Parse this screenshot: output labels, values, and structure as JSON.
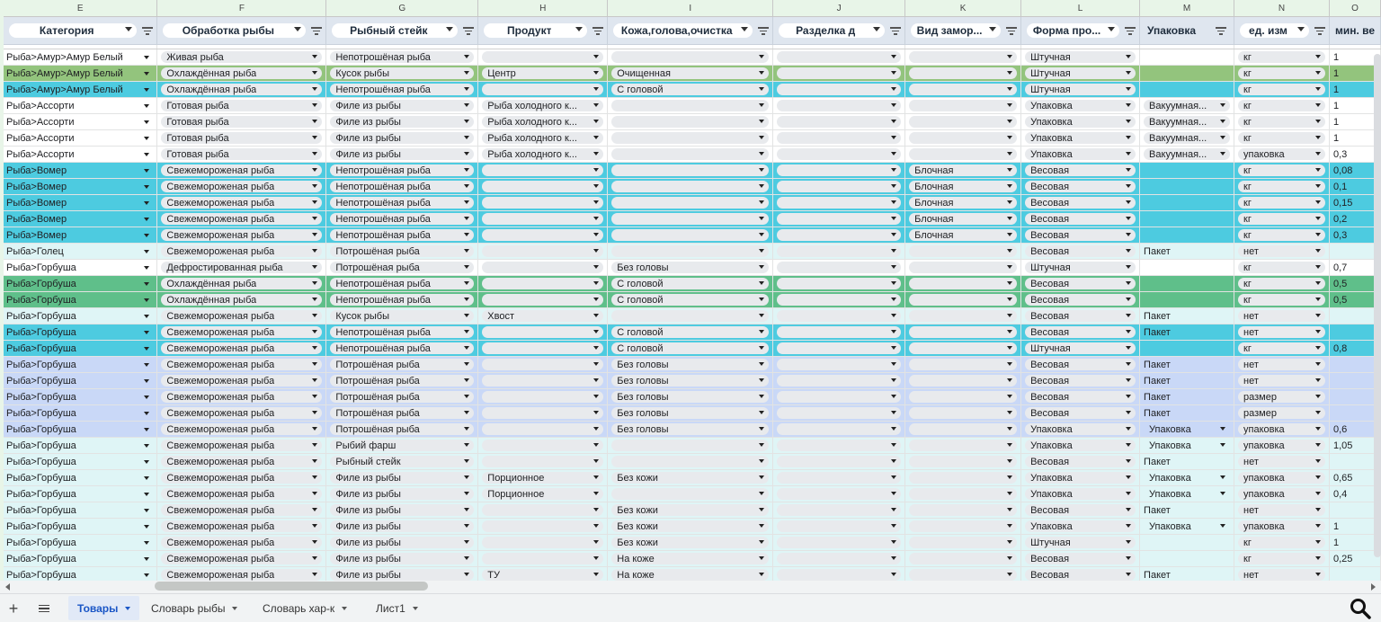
{
  "columns": [
    {
      "letter": "E",
      "header": "Категория",
      "type": "chipheader",
      "filter": true,
      "cell": "nochip"
    },
    {
      "letter": "F",
      "header": "Обработка рыбы",
      "type": "chipheader",
      "filter": true,
      "cell": "chip"
    },
    {
      "letter": "G",
      "header": "Рыбный стейк",
      "type": "chipheader",
      "filter": true,
      "cell": "chip"
    },
    {
      "letter": "H",
      "header": "Продукт",
      "type": "chipheader",
      "filter": true,
      "cell": "chip"
    },
    {
      "letter": "I",
      "header": "Кожа,голова,очистка",
      "type": "chipheader",
      "filter": true,
      "cell": "chip"
    },
    {
      "letter": "J",
      "header": "Разделка д",
      "type": "chipheader",
      "filter": true,
      "cell": "chip"
    },
    {
      "letter": "K",
      "header": "Вид замор...",
      "type": "chipheader",
      "filter": true,
      "cell": "chip"
    },
    {
      "letter": "L",
      "header": "Форма про...",
      "type": "chipheader",
      "filter": true,
      "cell": "chip"
    },
    {
      "letter": "M",
      "header": "Упаковка",
      "type": "plainheader",
      "filter": true,
      "cell": "special"
    },
    {
      "letter": "N",
      "header": "ед. изм",
      "type": "chipheader",
      "filter": true,
      "cell": "chip"
    },
    {
      "letter": "O",
      "header": "мин. ве",
      "type": "plainheader",
      "filter": false,
      "cell": "plain"
    }
  ],
  "colors": {
    "white": "#ffffff",
    "light": "#dff5f6",
    "cyan": "#4dcbe0",
    "green": "#93c47d",
    "teal": "#5fbf8a",
    "lav": "#c9d8f7"
  },
  "rows": [
    {
      "bg": "white",
      "fill": "white",
      "cells": [
        "Рыба>Амур>Амур Белый",
        "Живая рыба",
        "Непотрошёная рыба",
        "",
        "",
        "",
        "",
        "Штучная",
        "",
        "кг",
        "1"
      ]
    },
    {
      "bg": "green",
      "fill": "green",
      "cells": [
        "Рыба>Амур>Амур Белый",
        "Охлаждённая рыба",
        "Кусок рыбы",
        "Центр",
        "Очищенная",
        "",
        "",
        "Штучная",
        "",
        "кг",
        "1"
      ]
    },
    {
      "bg": "cyan",
      "fill": "cyan",
      "cells": [
        "Рыба>Амур>Амур Белый",
        "Охлаждённая рыба",
        "Непотрошёная рыба",
        "",
        "С головой",
        "",
        "",
        "Штучная",
        "",
        "кг",
        "1"
      ]
    },
    {
      "bg": "white",
      "fill": "white",
      "cells": [
        "Рыба>Ассорти",
        "Готовая рыба",
        "Филе из рыбы",
        "Рыба холодного к...",
        "",
        "",
        "",
        "Упаковка",
        "Вакуумная...",
        "кг",
        "1"
      ]
    },
    {
      "bg": "white",
      "fill": "white",
      "cells": [
        "Рыба>Ассорти",
        "Готовая рыба",
        "Филе из рыбы",
        "Рыба холодного к...",
        "",
        "",
        "",
        "Упаковка",
        "Вакуумная...",
        "кг",
        "1"
      ]
    },
    {
      "bg": "white",
      "fill": "white",
      "cells": [
        "Рыба>Ассорти",
        "Готовая рыба",
        "Филе из рыбы",
        "Рыба холодного к...",
        "",
        "",
        "",
        "Упаковка",
        "Вакуумная...",
        "кг",
        "1"
      ]
    },
    {
      "bg": "white",
      "fill": "white",
      "cells": [
        "Рыба>Ассорти",
        "Готовая рыба",
        "Филе из рыбы",
        "Рыба холодного к...",
        "",
        "",
        "",
        "Упаковка",
        "Вакуумная...",
        "упаковка",
        "0,3"
      ]
    },
    {
      "bg": "cyan",
      "fill": "cyan",
      "cells": [
        "Рыба>Вомер",
        "Свежемороженая рыба",
        "Непотрошёная рыба",
        "",
        "",
        "",
        "Блочная",
        "Весовая",
        "",
        "кг",
        "0,08"
      ]
    },
    {
      "bg": "cyan",
      "fill": "cyan",
      "cells": [
        "Рыба>Вомер",
        "Свежемороженая рыба",
        "Непотрошёная рыба",
        "",
        "",
        "",
        "Блочная",
        "Весовая",
        "",
        "кг",
        "0,1"
      ]
    },
    {
      "bg": "cyan",
      "fill": "cyan",
      "cells": [
        "Рыба>Вомер",
        "Свежемороженая рыба",
        "Непотрошёная рыба",
        "",
        "",
        "",
        "Блочная",
        "Весовая",
        "",
        "кг",
        "0,15"
      ]
    },
    {
      "bg": "cyan",
      "fill": "cyan",
      "cells": [
        "Рыба>Вомер",
        "Свежемороженая рыба",
        "Непотрошёная рыба",
        "",
        "",
        "",
        "Блочная",
        "Весовая",
        "",
        "кг",
        "0,2"
      ]
    },
    {
      "bg": "cyan",
      "fill": "cyan",
      "cells": [
        "Рыба>Вомер",
        "Свежемороженая рыба",
        "Непотрошёная рыба",
        "",
        "",
        "",
        "Блочная",
        "Весовая",
        "",
        "кг",
        "0,3"
      ]
    },
    {
      "bg": "light",
      "fill": "light",
      "cells": [
        "Рыба>Голец",
        "Свежемороженая рыба",
        "Потрошёная рыба",
        "",
        "",
        "",
        "",
        "Весовая",
        "Пакет",
        "нет",
        ""
      ]
    },
    {
      "bg": "white",
      "fill": "white",
      "cells": [
        "Рыба>Горбуша",
        "Дефростированная рыба",
        "Потрошёная рыба",
        "",
        "Без головы",
        "",
        "",
        "Штучная",
        "",
        "кг",
        "0,7"
      ]
    },
    {
      "bg": "teal",
      "fill": "teal",
      "cells": [
        "Рыба>Горбуша",
        "Охлаждённая рыба",
        "Непотрошёная рыба",
        "",
        "С головой",
        "",
        "",
        "Весовая",
        "",
        "кг",
        "0,5"
      ]
    },
    {
      "bg": "teal",
      "fill": "teal",
      "cells": [
        "Рыба>Горбуша",
        "Охлаждённая рыба",
        "Непотрошёная рыба",
        "",
        "С головой",
        "",
        "",
        "Весовая",
        "",
        "кг",
        "0,5"
      ]
    },
    {
      "bg": "light",
      "fill": "light",
      "cells": [
        "Рыба>Горбуша",
        "Свежемороженая рыба",
        "Кусок рыбы",
        "Хвост",
        "",
        "",
        "",
        "Весовая",
        "Пакет",
        "нет",
        ""
      ]
    },
    {
      "bg": "cyan",
      "fill": "cyan",
      "cells": [
        "Рыба>Горбуша",
        "Свежемороженая рыба",
        "Непотрошёная рыба",
        "",
        "С головой",
        "",
        "",
        "Весовая",
        "Пакет",
        "нет",
        ""
      ]
    },
    {
      "bg": "cyan",
      "fill": "cyan",
      "cells": [
        "Рыба>Горбуша",
        "Свежемороженая рыба",
        "Непотрошёная рыба",
        "",
        "С головой",
        "",
        "",
        "Штучная",
        "",
        "кг",
        "0,8"
      ]
    },
    {
      "bg": "lav",
      "fill": "lav",
      "cells": [
        "Рыба>Горбуша",
        "Свежемороженая рыба",
        "Потрошёная рыба",
        "",
        "Без головы",
        "",
        "",
        "Весовая",
        "Пакет",
        "нет",
        ""
      ]
    },
    {
      "bg": "lav",
      "fill": "lav",
      "cells": [
        "Рыба>Горбуша",
        "Свежемороженая рыба",
        "Потрошёная рыба",
        "",
        "Без головы",
        "",
        "",
        "Весовая",
        "Пакет",
        "нет",
        ""
      ]
    },
    {
      "bg": "lav",
      "fill": "lav",
      "cells": [
        "Рыба>Горбуша",
        "Свежемороженая рыба",
        "Потрошёная рыба",
        "",
        "Без головы",
        "",
        "",
        "Весовая",
        "Пакет",
        "размер",
        ""
      ]
    },
    {
      "bg": "lav",
      "fill": "lav",
      "cells": [
        "Рыба>Горбуша",
        "Свежемороженая рыба",
        "Потрошёная рыба",
        "",
        "Без головы",
        "",
        "",
        "Весовая",
        "Пакет",
        "размер",
        ""
      ]
    },
    {
      "bg": "lav",
      "fill": "lav",
      "cells": [
        "Рыба>Горбуша",
        "Свежемороженая рыба",
        "Потрошёная рыба",
        "",
        "Без головы",
        "",
        "",
        "Упаковка",
        "Упаковка",
        "упаковка",
        "0,6"
      ]
    },
    {
      "bg": "light",
      "fill": "light",
      "cells": [
        "Рыба>Горбуша",
        "Свежемороженая рыба",
        "Рыбий фарш",
        "",
        "",
        "",
        "",
        "Упаковка",
        "Упаковка",
        "упаковка",
        "1,05"
      ]
    },
    {
      "bg": "light",
      "fill": "light",
      "cells": [
        "Рыба>Горбуша",
        "Свежемороженая рыба",
        "Рыбный стейк",
        "",
        "",
        "",
        "",
        "Весовая",
        "Пакет",
        "нет",
        ""
      ]
    },
    {
      "bg": "light",
      "fill": "light",
      "cells": [
        "Рыба>Горбуша",
        "Свежемороженая рыба",
        "Филе из рыбы",
        "Порционное",
        "Без кожи",
        "",
        "",
        "Упаковка",
        "Упаковка",
        "упаковка",
        "0,65"
      ]
    },
    {
      "bg": "light",
      "fill": "light",
      "cells": [
        "Рыба>Горбуша",
        "Свежемороженая рыба",
        "Филе из рыбы",
        "Порционное",
        "",
        "",
        "",
        "Упаковка",
        "Упаковка",
        "упаковка",
        "0,4"
      ]
    },
    {
      "bg": "light",
      "fill": "light",
      "cells": [
        "Рыба>Горбуша",
        "Свежемороженая рыба",
        "Филе из рыбы",
        "",
        "Без кожи",
        "",
        "",
        "Весовая",
        "Пакет",
        "нет",
        ""
      ]
    },
    {
      "bg": "light",
      "fill": "light",
      "cells": [
        "Рыба>Горбуша",
        "Свежемороженая рыба",
        "Филе из рыбы",
        "",
        "Без кожи",
        "",
        "",
        "Упаковка",
        "Упаковка",
        "упаковка",
        "1"
      ]
    },
    {
      "bg": "light",
      "fill": "light",
      "cells": [
        "Рыба>Горбуша",
        "Свежемороженая рыба",
        "Филе из рыбы",
        "",
        "Без кожи",
        "",
        "",
        "Штучная",
        "",
        "кг",
        "1"
      ]
    },
    {
      "bg": "light",
      "fill": "light",
      "cells": [
        "Рыба>Горбуша",
        "Свежемороженая рыба",
        "Филе из рыбы",
        "",
        "На коже",
        "",
        "",
        "Весовая",
        "",
        "кг",
        "0,25"
      ]
    },
    {
      "bg": "light",
      "fill": "light",
      "cells": [
        "Рыба>Горбуша",
        "Свежемороженая рыба",
        "Филе из рыбы",
        "ТУ",
        "На коже",
        "",
        "",
        "Весовая",
        "Пакет",
        "нет",
        ""
      ]
    },
    {
      "bg": "light",
      "fill": "light",
      "cells": [
        "",
        "",
        "",
        "",
        "",
        "",
        "",
        "",
        "",
        "",
        ""
      ]
    }
  ],
  "tabs": [
    {
      "label": "Товары",
      "active": true
    },
    {
      "label": "Словарь рыбы",
      "active": false
    },
    {
      "label": "Словарь хар-к",
      "active": false
    },
    {
      "label": "Лист1",
      "active": false
    }
  ],
  "icons": {
    "add": "plus-icon",
    "menu": "all-sheets-icon",
    "zoom": "search-icon"
  }
}
